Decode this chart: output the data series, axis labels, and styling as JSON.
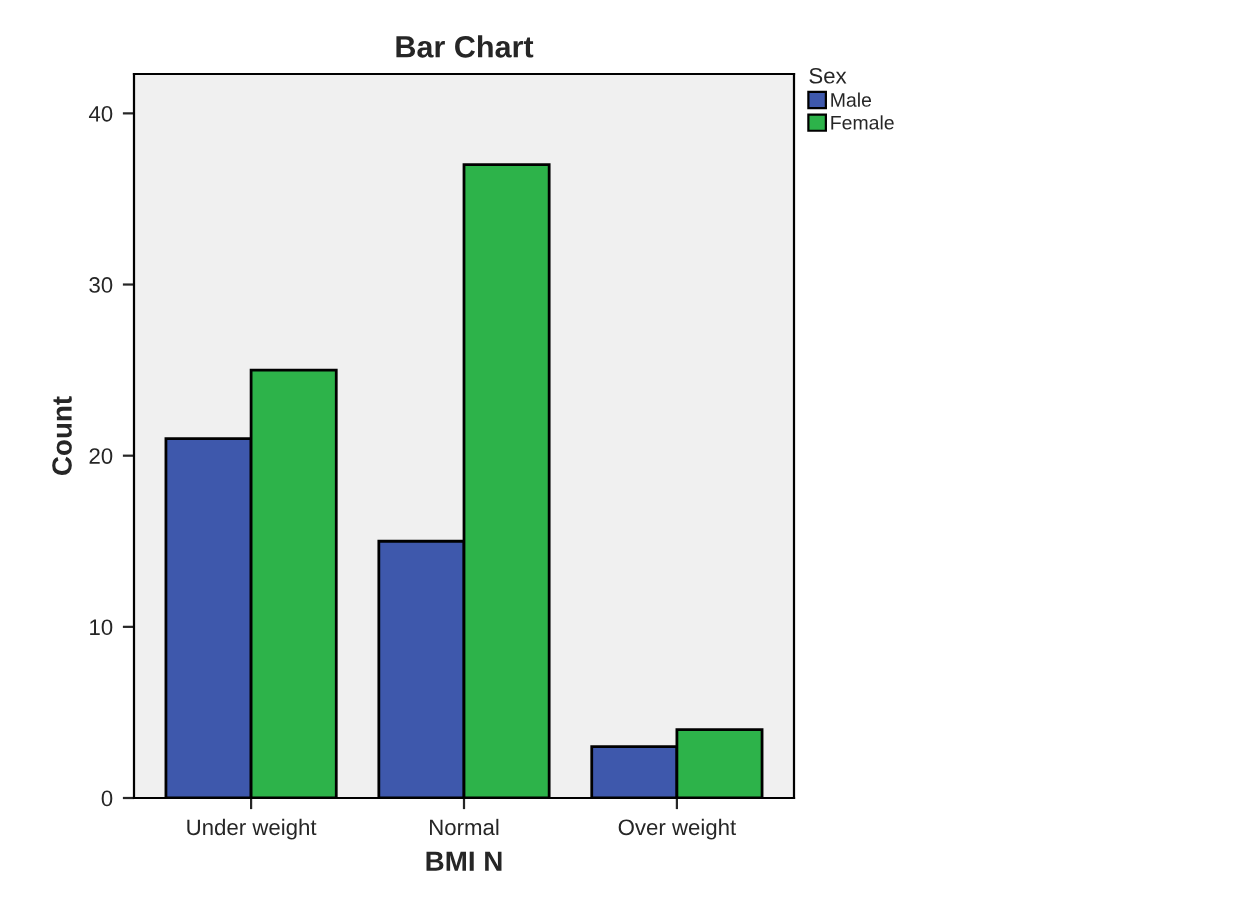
{
  "chart_data": {
    "type": "bar",
    "title": "Bar Chart",
    "xlabel": "BMI N",
    "ylabel": "Count",
    "legend_title": "Sex",
    "categories": [
      "Under weight",
      "Normal",
      "Over weight"
    ],
    "series": [
      {
        "name": "Male",
        "color": "#3e58ac",
        "values": [
          21,
          15,
          3
        ]
      },
      {
        "name": "Female",
        "color": "#2db34a",
        "values": [
          25,
          37,
          4
        ]
      }
    ],
    "ylim": [
      0,
      42.3
    ],
    "yticks": [
      0,
      10,
      20,
      30,
      40
    ],
    "grid": false,
    "legend": "top right"
  }
}
